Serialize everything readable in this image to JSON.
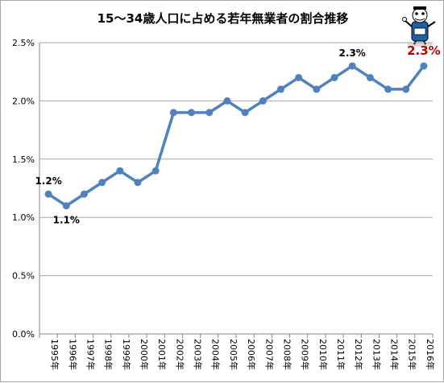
{
  "chart_data": {
    "type": "line",
    "title": "15～34歳人口に占める若年無業者の割合推移",
    "categories": [
      "1995年",
      "1996年",
      "1997年",
      "1998年",
      "1999年",
      "2000年",
      "2001年",
      "2002年",
      "2003年",
      "2004年",
      "2005年",
      "2006年",
      "2007年",
      "2008年",
      "2009年",
      "2010年",
      "2011年",
      "2012年",
      "2013年",
      "2014年",
      "2015年",
      "2016年"
    ],
    "values": [
      1.2,
      1.1,
      1.2,
      1.3,
      1.4,
      1.3,
      1.4,
      1.9,
      1.9,
      1.9,
      2.0,
      1.9,
      2.0,
      2.1,
      2.2,
      2.1,
      2.2,
      2.3,
      2.2,
      2.1,
      2.1,
      2.3
    ],
    "ylim": [
      0,
      2.5
    ],
    "yticks": [
      "0.0%",
      "0.5%",
      "1.0%",
      "1.5%",
      "2.0%",
      "2.5%"
    ],
    "ytick_values": [
      0,
      0.5,
      1.0,
      1.5,
      2.0,
      2.5
    ],
    "grid": true,
    "line_color": "#4f81bd",
    "gridline_color": "#a6a6a6",
    "annotations": [
      {
        "index": 0,
        "text": "1.2%",
        "position": "above",
        "style": "normal"
      },
      {
        "index": 1,
        "text": "1.1%",
        "position": "below",
        "style": "normal"
      },
      {
        "index": 17,
        "text": "2.3%",
        "position": "above",
        "style": "normal"
      },
      {
        "index": 21,
        "text": "2.3%",
        "position": "above",
        "style": "highlight",
        "color": "#c00000"
      }
    ],
    "xlabel": "",
    "ylabel": ""
  },
  "icons": {
    "mascot": "mascot-icon"
  }
}
